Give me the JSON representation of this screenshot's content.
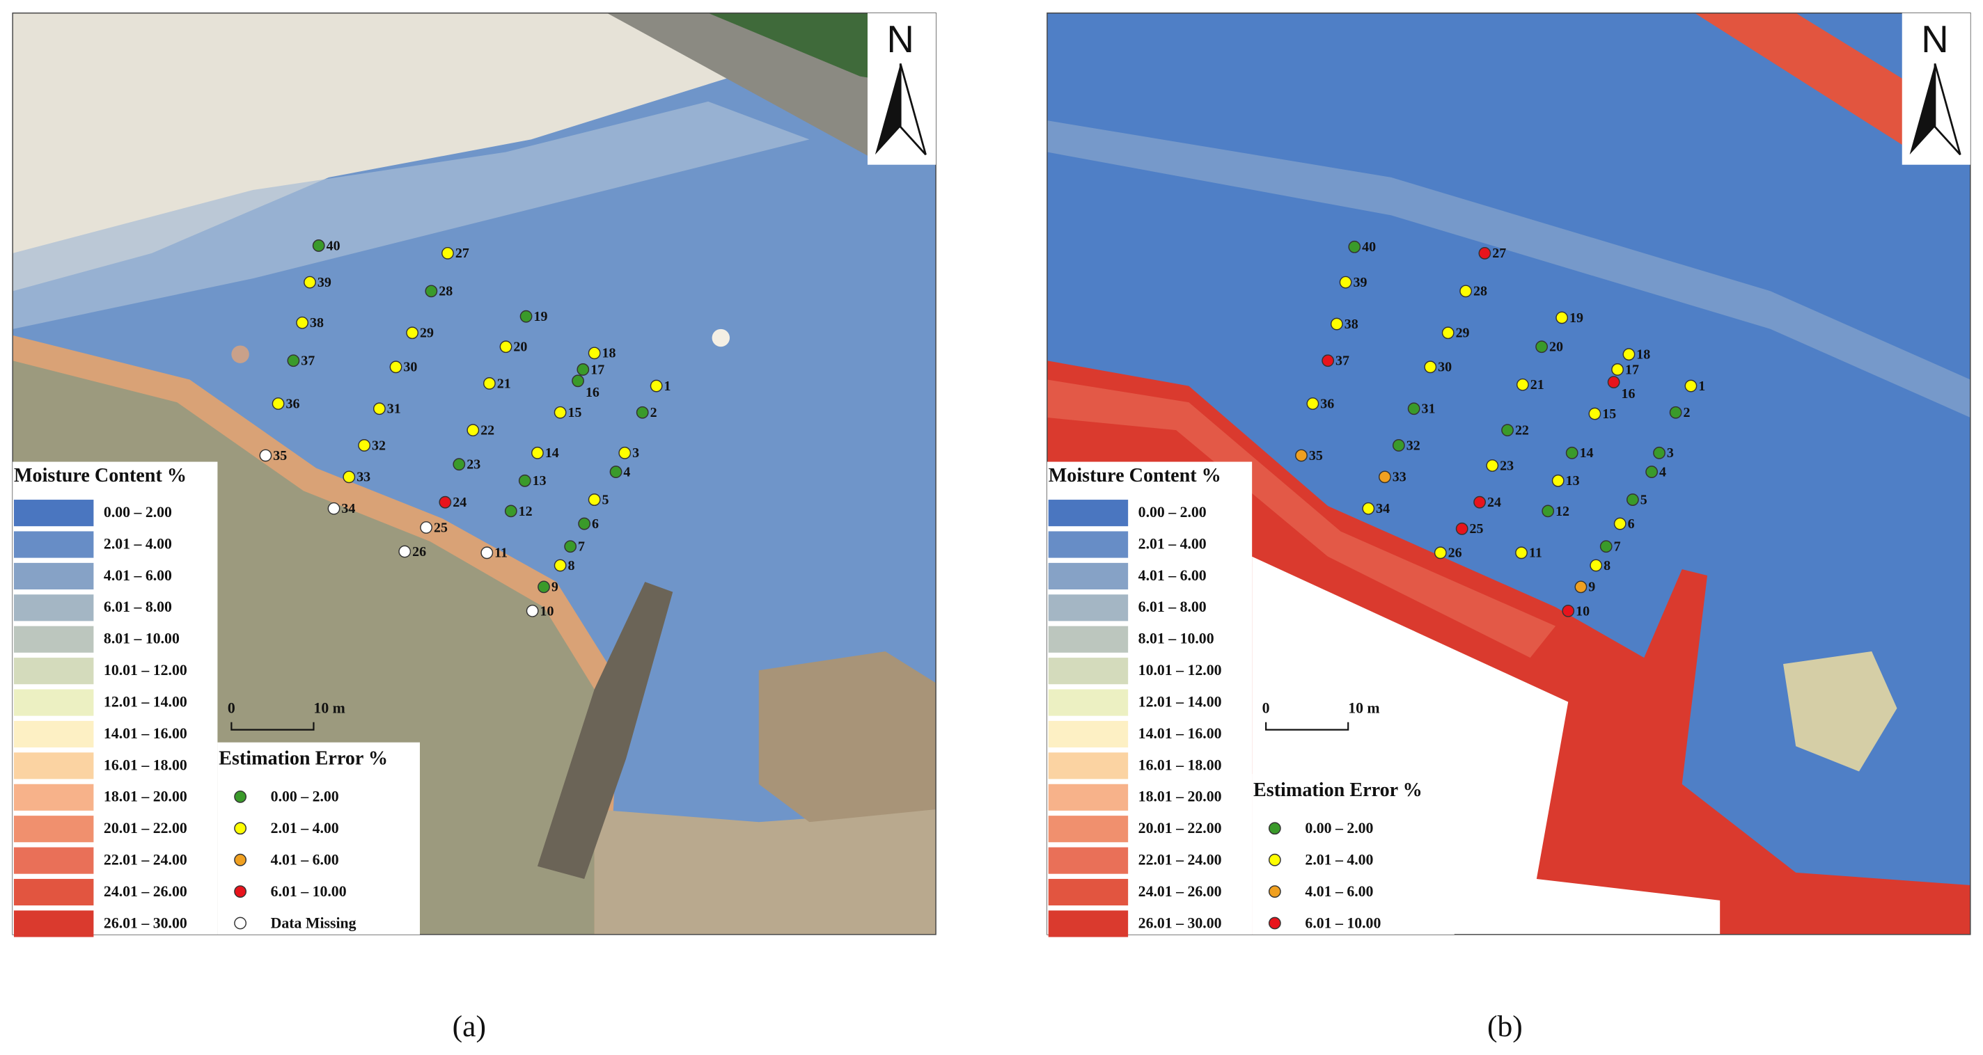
{
  "panels": [
    {
      "caption": "(a)",
      "north": "N",
      "scale_bar": [
        "0",
        "10 m"
      ],
      "moisture_legend": {
        "title": "Moisture Content %",
        "classes": [
          {
            "label": "0.00 – 2.00",
            "color": "#4a76c0"
          },
          {
            "label": "2.01 – 4.00",
            "color": "#678dc6"
          },
          {
            "label": "4.01 – 6.00",
            "color": "#86a2c6"
          },
          {
            "label": "6.01 – 8.00",
            "color": "#a4b6c4"
          },
          {
            "label": "8.01 – 10.00",
            "color": "#bcc6be"
          },
          {
            "label": "10.01 – 12.00",
            "color": "#d4dbbc"
          },
          {
            "label": "12.01 – 14.00",
            "color": "#ecf0c2"
          },
          {
            "label": "14.01 – 16.00",
            "color": "#fdf0c4"
          },
          {
            "label": "16.01 – 18.00",
            "color": "#fbd3a2"
          },
          {
            "label": "18.01 – 20.00",
            "color": "#f7b28a"
          },
          {
            "label": "20.01 – 22.00",
            "color": "#f0906e"
          },
          {
            "label": "22.01 – 24.00",
            "color": "#e97058"
          },
          {
            "label": "24.01 – 26.00",
            "color": "#e25540"
          },
          {
            "label": "26.01 – 30.00",
            "color": "#da3a2e"
          }
        ]
      },
      "error_legend": {
        "title": "Estimation Error %",
        "classes": [
          {
            "label": "0.00 – 2.00",
            "color": "#3a9a2a"
          },
          {
            "label": "2.01 – 4.00",
            "color": "#ffff00"
          },
          {
            "label": "4.01 – 6.00",
            "color": "#f0a020"
          },
          {
            "label": "6.01 – 10.00",
            "color": "#e8141c"
          },
          {
            "label": "Data Missing",
            "color": "#ffffff"
          }
        ]
      },
      "points": [
        {
          "label": "1",
          "color": "#ffff00"
        },
        {
          "label": "2",
          "color": "#3a9a2a"
        },
        {
          "label": "3",
          "color": "#ffff00"
        },
        {
          "label": "4",
          "color": "#3a9a2a"
        },
        {
          "label": "5",
          "color": "#ffff00"
        },
        {
          "label": "6",
          "color": "#3a9a2a"
        },
        {
          "label": "7",
          "color": "#3a9a2a"
        },
        {
          "label": "8",
          "color": "#ffff00"
        },
        {
          "label": "9",
          "color": "#3a9a2a"
        },
        {
          "label": "10",
          "color": "#ffffff"
        },
        {
          "label": "11",
          "color": "#ffffff"
        },
        {
          "label": "12",
          "color": "#3a9a2a"
        },
        {
          "label": "13",
          "color": "#3a9a2a"
        },
        {
          "label": "14",
          "color": "#ffff00"
        },
        {
          "label": "15",
          "color": "#ffff00"
        },
        {
          "label": "16",
          "color": "#3a9a2a"
        },
        {
          "label": "17",
          "color": "#3a9a2a"
        },
        {
          "label": "18",
          "color": "#ffff00"
        },
        {
          "label": "19",
          "color": "#3a9a2a"
        },
        {
          "label": "20",
          "color": "#ffff00"
        },
        {
          "label": "21",
          "color": "#ffff00"
        },
        {
          "label": "22",
          "color": "#ffff00"
        },
        {
          "label": "23",
          "color": "#3a9a2a"
        },
        {
          "label": "24",
          "color": "#e8141c"
        },
        {
          "label": "25",
          "color": "#ffffff"
        },
        {
          "label": "26",
          "color": "#ffffff"
        },
        {
          "label": "27",
          "color": "#ffff00"
        },
        {
          "label": "28",
          "color": "#3a9a2a"
        },
        {
          "label": "29",
          "color": "#ffff00"
        },
        {
          "label": "30",
          "color": "#ffff00"
        },
        {
          "label": "31",
          "color": "#ffff00"
        },
        {
          "label": "32",
          "color": "#ffff00"
        },
        {
          "label": "33",
          "color": "#ffff00"
        },
        {
          "label": "34",
          "color": "#ffffff"
        },
        {
          "label": "35",
          "color": "#ffffff"
        },
        {
          "label": "36",
          "color": "#ffff00"
        },
        {
          "label": "37",
          "color": "#3a9a2a"
        },
        {
          "label": "38",
          "color": "#ffff00"
        },
        {
          "label": "39",
          "color": "#ffff00"
        },
        {
          "label": "40",
          "color": "#3a9a2a"
        }
      ]
    },
    {
      "caption": "(b)",
      "north": "N",
      "scale_bar": [
        "0",
        "10 m"
      ],
      "moisture_legend": {
        "title": "Moisture Content %",
        "classes": [
          {
            "label": "0.00 – 2.00",
            "color": "#4a76c0"
          },
          {
            "label": "2.01 – 4.00",
            "color": "#678dc6"
          },
          {
            "label": "4.01 – 6.00",
            "color": "#86a2c6"
          },
          {
            "label": "6.01 – 8.00",
            "color": "#a4b6c4"
          },
          {
            "label": "8.01 – 10.00",
            "color": "#bcc6be"
          },
          {
            "label": "10.01 – 12.00",
            "color": "#d4dbbc"
          },
          {
            "label": "12.01 – 14.00",
            "color": "#ecf0c2"
          },
          {
            "label": "14.01 – 16.00",
            "color": "#fdf0c4"
          },
          {
            "label": "16.01 – 18.00",
            "color": "#fbd3a2"
          },
          {
            "label": "18.01 – 20.00",
            "color": "#f7b28a"
          },
          {
            "label": "20.01 – 22.00",
            "color": "#f0906e"
          },
          {
            "label": "22.01 – 24.00",
            "color": "#e97058"
          },
          {
            "label": "24.01 – 26.00",
            "color": "#e25540"
          },
          {
            "label": "26.01 – 30.00",
            "color": "#da3a2e"
          }
        ]
      },
      "error_legend": {
        "title": "Estimation Error %",
        "classes": [
          {
            "label": "0.00 – 2.00",
            "color": "#3a9a2a"
          },
          {
            "label": "2.01 – 4.00",
            "color": "#ffff00"
          },
          {
            "label": "4.01 – 6.00",
            "color": "#f0a020"
          },
          {
            "label": "6.01 – 10.00",
            "color": "#e8141c"
          }
        ]
      },
      "points": [
        {
          "label": "1",
          "color": "#ffff00"
        },
        {
          "label": "2",
          "color": "#3a9a2a"
        },
        {
          "label": "3",
          "color": "#3a9a2a"
        },
        {
          "label": "4",
          "color": "#3a9a2a"
        },
        {
          "label": "5",
          "color": "#3a9a2a"
        },
        {
          "label": "6",
          "color": "#ffff00"
        },
        {
          "label": "7",
          "color": "#3a9a2a"
        },
        {
          "label": "8",
          "color": "#ffff00"
        },
        {
          "label": "9",
          "color": "#f0a020"
        },
        {
          "label": "10",
          "color": "#e8141c"
        },
        {
          "label": "11",
          "color": "#ffff00"
        },
        {
          "label": "12",
          "color": "#3a9a2a"
        },
        {
          "label": "13",
          "color": "#ffff00"
        },
        {
          "label": "14",
          "color": "#3a9a2a"
        },
        {
          "label": "15",
          "color": "#ffff00"
        },
        {
          "label": "16",
          "color": "#e8141c"
        },
        {
          "label": "17",
          "color": "#ffff00"
        },
        {
          "label": "18",
          "color": "#ffff00"
        },
        {
          "label": "19",
          "color": "#ffff00"
        },
        {
          "label": "20",
          "color": "#3a9a2a"
        },
        {
          "label": "21",
          "color": "#ffff00"
        },
        {
          "label": "22",
          "color": "#3a9a2a"
        },
        {
          "label": "23",
          "color": "#ffff00"
        },
        {
          "label": "24",
          "color": "#e8141c"
        },
        {
          "label": "25",
          "color": "#e8141c"
        },
        {
          "label": "26",
          "color": "#ffff00"
        },
        {
          "label": "27",
          "color": "#e8141c"
        },
        {
          "label": "28",
          "color": "#ffff00"
        },
        {
          "label": "29",
          "color": "#ffff00"
        },
        {
          "label": "30",
          "color": "#ffff00"
        },
        {
          "label": "31",
          "color": "#3a9a2a"
        },
        {
          "label": "32",
          "color": "#3a9a2a"
        },
        {
          "label": "33",
          "color": "#f0a020"
        },
        {
          "label": "34",
          "color": "#ffff00"
        },
        {
          "label": "35",
          "color": "#f0a020"
        },
        {
          "label": "36",
          "color": "#ffff00"
        },
        {
          "label": "37",
          "color": "#e8141c"
        },
        {
          "label": "38",
          "color": "#ffff00"
        },
        {
          "label": "39",
          "color": "#ffff00"
        },
        {
          "label": "40",
          "color": "#3a9a2a"
        }
      ]
    }
  ]
}
